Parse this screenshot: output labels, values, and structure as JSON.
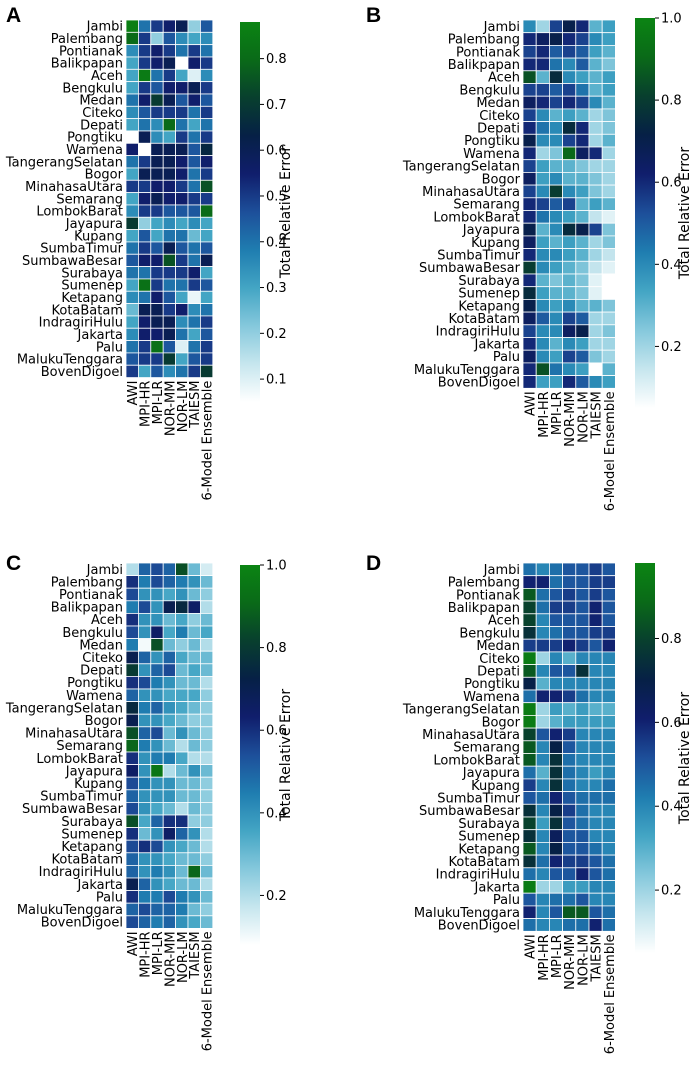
{
  "figure": {
    "colormap": [
      "#ffffff",
      "#c6e6ee",
      "#85c8dc",
      "#43a5c4",
      "#1f7db0",
      "#1d4f9a",
      "#101e6c",
      "#062046",
      "#083f2e",
      "#0a6a18",
      "#0b8413"
    ],
    "cell_border_color": "#ffffff"
  },
  "chart_data": [
    {
      "type": "heatmap",
      "panel": "A",
      "title": "",
      "colorbar_label": "Total Relative Error",
      "vmin": 0.05,
      "vmax": 0.88,
      "cbar_ticks": [
        0.1,
        0.2,
        0.3,
        0.4,
        0.5,
        0.6,
        0.7,
        0.8
      ],
      "cbar_tick_labels": [
        "0.1",
        "0.2",
        "0.3",
        "0.4",
        "0.5",
        "0.6",
        "0.7",
        "0.8"
      ],
      "x_labels": [
        "AWI",
        "MPI-HR",
        "MPI-LR",
        "NOR-MM",
        "NOR-LM",
        "TAIESM",
        "6-Model Ensemble"
      ],
      "y_labels": [
        "Jambi",
        "Palembang",
        "Pontianak",
        "Balikpapan",
        "Aceh",
        "Bengkulu",
        "Medan",
        "Citeko",
        "Depati",
        "Pongtiku",
        "Wamena",
        "TangerangSelatan",
        "Bogor",
        "MinahasaUtara",
        "Semarang",
        "LombokBarat",
        "Jayapura",
        "Kupang",
        "SumbaTimur",
        "SumbawaBesar",
        "Surabaya",
        "Sumenep",
        "Ketapang",
        "KotaBatam",
        "IndragiriHulu",
        "Jakarta",
        "Palu",
        "MalukuTenggara",
        "BovenDigoel"
      ],
      "values": [
        [
          0.86,
          0.4,
          0.5,
          0.55,
          0.6,
          0.2,
          0.45
        ],
        [
          0.8,
          0.5,
          0.2,
          0.45,
          0.35,
          0.3,
          0.35
        ],
        [
          0.35,
          0.5,
          0.55,
          0.5,
          0.4,
          0.5,
          0.4
        ],
        [
          0.3,
          0.5,
          0.55,
          0.6,
          0.05,
          0.55,
          0.5
        ],
        [
          0.3,
          0.85,
          0.4,
          0.5,
          0.3,
          0.1,
          0.35
        ],
        [
          0.3,
          0.5,
          0.45,
          0.55,
          0.55,
          0.6,
          0.5
        ],
        [
          0.4,
          0.55,
          0.7,
          0.6,
          0.45,
          0.55,
          0.45
        ],
        [
          0.35,
          0.45,
          0.5,
          0.5,
          0.5,
          0.4,
          0.5
        ],
        [
          0.3,
          0.4,
          0.35,
          0.8,
          0.4,
          0.3,
          0.4
        ],
        [
          0.05,
          0.6,
          0.35,
          0.3,
          0.5,
          0.4,
          0.5
        ],
        [
          0.55,
          0.05,
          0.6,
          0.6,
          0.6,
          0.45,
          0.65
        ],
        [
          0.4,
          0.5,
          0.6,
          0.6,
          0.55,
          0.45,
          0.55
        ],
        [
          0.3,
          0.6,
          0.6,
          0.6,
          0.55,
          0.4,
          0.5
        ],
        [
          0.5,
          0.5,
          0.55,
          0.55,
          0.5,
          0.4,
          0.75
        ],
        [
          0.3,
          0.55,
          0.6,
          0.55,
          0.55,
          0.5,
          0.5
        ],
        [
          0.35,
          0.5,
          0.5,
          0.45,
          0.45,
          0.45,
          0.8
        ],
        [
          0.7,
          0.2,
          0.3,
          0.35,
          0.3,
          0.35,
          0.3
        ],
        [
          0.3,
          0.45,
          0.3,
          0.4,
          0.4,
          0.25,
          0.3
        ],
        [
          0.4,
          0.5,
          0.45,
          0.6,
          0.45,
          0.4,
          0.45
        ],
        [
          0.45,
          0.55,
          0.55,
          0.75,
          0.5,
          0.4,
          0.6
        ],
        [
          0.4,
          0.4,
          0.5,
          0.5,
          0.5,
          0.55,
          0.3
        ],
        [
          0.3,
          0.82,
          0.5,
          0.4,
          0.4,
          0.5,
          0.45
        ],
        [
          0.35,
          0.4,
          0.55,
          0.45,
          0.3,
          0.08,
          0.3
        ],
        [
          0.25,
          0.6,
          0.6,
          0.5,
          0.55,
          0.35,
          0.4
        ],
        [
          0.3,
          0.55,
          0.6,
          0.6,
          0.35,
          0.4,
          0.5
        ],
        [
          0.35,
          0.55,
          0.55,
          0.6,
          0.4,
          0.3,
          0.45
        ],
        [
          0.4,
          0.5,
          0.82,
          0.45,
          0.1,
          0.4,
          0.5
        ],
        [
          0.45,
          0.5,
          0.5,
          0.7,
          0.3,
          0.45,
          0.5
        ],
        [
          0.5,
          0.3,
          0.45,
          0.35,
          0.4,
          0.5,
          0.7
        ]
      ]
    },
    {
      "type": "heatmap",
      "panel": "B",
      "title": "",
      "colorbar_label": "Total Relative Error",
      "vmin": 0.05,
      "vmax": 1.0,
      "cbar_ticks": [
        0.2,
        0.4,
        0.6,
        0.8,
        1.0
      ],
      "cbar_tick_labels": [
        "0.2",
        "0.4",
        "0.6",
        "0.8",
        "1.0"
      ],
      "x_labels": [
        "AWI",
        "MPI-HR",
        "MPI-LR",
        "NOR-MM",
        "NOR-LM",
        "TAIESM",
        "6-Model Ensemble"
      ],
      "y_labels": [
        "Jambi",
        "Palembang",
        "Pontianak",
        "Balikpapan",
        "Aceh",
        "Bengkulu",
        "Medan",
        "Citeko",
        "Depati",
        "Pongtiku",
        "Wamena",
        "TangerangSelatan",
        "Bogor",
        "MinahasaUtara",
        "Semarang",
        "LombokBarat",
        "Jayapura",
        "Kupang",
        "SumbaTimur",
        "SumbawaBesar",
        "Surabaya",
        "Sumenep",
        "Ketapang",
        "KotaBatam",
        "IndragiriHulu",
        "Jakarta",
        "Palu",
        "MalukuTenggara",
        "BovenDigoel"
      ],
      "values": [
        [
          0.4,
          0.2,
          0.55,
          0.7,
          0.6,
          0.3,
          0.35
        ],
        [
          0.6,
          0.65,
          0.7,
          0.6,
          0.55,
          0.4,
          0.35
        ],
        [
          0.55,
          0.6,
          0.5,
          0.55,
          0.5,
          0.35,
          0.3
        ],
        [
          0.6,
          0.6,
          0.45,
          0.4,
          0.5,
          0.3,
          0.25
        ],
        [
          0.85,
          0.3,
          0.75,
          0.4,
          0.35,
          0.3,
          0.35
        ],
        [
          0.55,
          0.55,
          0.5,
          0.55,
          0.45,
          0.3,
          0.35
        ],
        [
          0.65,
          0.6,
          0.55,
          0.6,
          0.55,
          0.4,
          0.3
        ],
        [
          0.55,
          0.4,
          0.3,
          0.35,
          0.3,
          0.2,
          0.25
        ],
        [
          0.6,
          0.45,
          0.4,
          0.75,
          0.6,
          0.2,
          0.25
        ],
        [
          0.7,
          0.4,
          0.4,
          0.55,
          0.6,
          0.2,
          0.3
        ],
        [
          0.6,
          0.2,
          0.25,
          0.9,
          0.65,
          0.6,
          0.2
        ],
        [
          0.55,
          0.35,
          0.3,
          0.3,
          0.25,
          0.2,
          0.2
        ],
        [
          0.65,
          0.35,
          0.4,
          0.3,
          0.3,
          0.25,
          0.2
        ],
        [
          0.55,
          0.4,
          0.8,
          0.4,
          0.35,
          0.25,
          0.2
        ],
        [
          0.6,
          0.55,
          0.5,
          0.55,
          0.3,
          0.35,
          0.3
        ],
        [
          0.6,
          0.45,
          0.4,
          0.35,
          0.3,
          0.15,
          0.1
        ],
        [
          0.7,
          0.3,
          0.4,
          0.75,
          0.7,
          0.55,
          0.25
        ],
        [
          0.65,
          0.35,
          0.3,
          0.35,
          0.3,
          0.2,
          0.25
        ],
        [
          0.6,
          0.4,
          0.4,
          0.35,
          0.3,
          0.2,
          0.15
        ],
        [
          0.8,
          0.4,
          0.35,
          0.3,
          0.25,
          0.15,
          0.1
        ],
        [
          0.6,
          0.3,
          0.25,
          0.3,
          0.25,
          0.1,
          0.05
        ],
        [
          0.75,
          0.35,
          0.3,
          0.3,
          0.25,
          0.1,
          0.05
        ],
        [
          0.7,
          0.4,
          0.35,
          0.4,
          0.3,
          0.3,
          0.25
        ],
        [
          0.65,
          0.5,
          0.4,
          0.55,
          0.5,
          0.2,
          0.2
        ],
        [
          0.55,
          0.4,
          0.4,
          0.65,
          0.7,
          0.2,
          0.25
        ],
        [
          0.6,
          0.4,
          0.3,
          0.4,
          0.35,
          0.2,
          0.2
        ],
        [
          0.65,
          0.4,
          0.35,
          0.55,
          0.5,
          0.25,
          0.2
        ],
        [
          0.6,
          0.85,
          0.45,
          0.4,
          0.35,
          0.05,
          0.3
        ],
        [
          0.6,
          0.35,
          0.35,
          0.6,
          0.5,
          0.4,
          0.35
        ]
      ]
    },
    {
      "type": "heatmap",
      "panel": "C",
      "title": "",
      "colorbar_label": "Total Relative Error",
      "vmin": 0.08,
      "vmax": 1.0,
      "cbar_ticks": [
        0.2,
        0.4,
        0.6,
        0.8,
        1.0
      ],
      "cbar_tick_labels": [
        "0.2",
        "0.4",
        "0.6",
        "0.8",
        "1.0"
      ],
      "x_labels": [
        "AWI",
        "MPI-HR",
        "MPI-LR",
        "NOR-MM",
        "NOR-LM",
        "TAIESM",
        "6-Model Ensemble"
      ],
      "y_labels": [
        "Jambi",
        "Palembang",
        "Pontianak",
        "Balikpapan",
        "Aceh",
        "Bengkulu",
        "Medan",
        "Citeko",
        "Depati",
        "Pongtiku",
        "Wamena",
        "TangerangSelatan",
        "Bogor",
        "MinahasaUtara",
        "Semarang",
        "LombokBarat",
        "Jayapura",
        "Kupang",
        "SumbaTimur",
        "SumbawaBesar",
        "Surabaya",
        "Sumenep",
        "Ketapang",
        "KotaBatam",
        "IndragiriHulu",
        "Jakarta",
        "Palu",
        "MalukuTenggara",
        "BovenDigoel"
      ],
      "values": [
        [
          0.2,
          0.5,
          0.55,
          0.5,
          0.85,
          0.3,
          0.15
        ],
        [
          0.6,
          0.45,
          0.55,
          0.5,
          0.45,
          0.4,
          0.3
        ],
        [
          0.55,
          0.4,
          0.4,
          0.35,
          0.4,
          0.3,
          0.25
        ],
        [
          0.45,
          0.55,
          0.4,
          0.7,
          0.75,
          0.65,
          0.2
        ],
        [
          0.6,
          0.4,
          0.4,
          0.3,
          0.35,
          0.25,
          0.3
        ],
        [
          0.55,
          0.4,
          0.65,
          0.35,
          0.45,
          0.3,
          0.35
        ],
        [
          0.45,
          0.1,
          0.85,
          0.3,
          0.25,
          0.3,
          0.2
        ],
        [
          0.7,
          0.5,
          0.4,
          0.5,
          0.35,
          0.3,
          0.3
        ],
        [
          0.8,
          0.4,
          0.5,
          0.55,
          0.3,
          0.35,
          0.3
        ],
        [
          0.6,
          0.55,
          0.45,
          0.4,
          0.3,
          0.3,
          0.2
        ],
        [
          0.5,
          0.4,
          0.4,
          0.35,
          0.35,
          0.35,
          0.25
        ],
        [
          0.75,
          0.45,
          0.5,
          0.4,
          0.35,
          0.3,
          0.25
        ],
        [
          0.7,
          0.4,
          0.4,
          0.35,
          0.3,
          0.25,
          0.25
        ],
        [
          0.85,
          0.5,
          0.55,
          0.3,
          0.4,
          0.3,
          0.25
        ],
        [
          0.9,
          0.45,
          0.4,
          0.3,
          0.2,
          0.3,
          0.25
        ],
        [
          0.6,
          0.4,
          0.45,
          0.45,
          0.35,
          0.2,
          0.2
        ],
        [
          0.65,
          0.4,
          0.95,
          0.2,
          0.3,
          0.4,
          0.3
        ],
        [
          0.55,
          0.45,
          0.4,
          0.4,
          0.3,
          0.3,
          0.25
        ],
        [
          0.5,
          0.4,
          0.4,
          0.4,
          0.3,
          0.3,
          0.25
        ],
        [
          0.55,
          0.4,
          0.35,
          0.3,
          0.2,
          0.3,
          0.25
        ],
        [
          0.85,
          0.35,
          0.5,
          0.6,
          0.6,
          0.25,
          0.25
        ],
        [
          0.6,
          0.3,
          0.4,
          0.65,
          0.5,
          0.4,
          0.2
        ],
        [
          0.55,
          0.6,
          0.55,
          0.4,
          0.35,
          0.3,
          0.2
        ],
        [
          0.5,
          0.4,
          0.4,
          0.35,
          0.3,
          0.3,
          0.25
        ],
        [
          0.5,
          0.4,
          0.45,
          0.4,
          0.3,
          0.9,
          0.3
        ],
        [
          0.7,
          0.5,
          0.4,
          0.35,
          0.3,
          0.3,
          0.2
        ],
        [
          0.6,
          0.45,
          0.45,
          0.55,
          0.45,
          0.4,
          0.3
        ],
        [
          0.5,
          0.55,
          0.5,
          0.5,
          0.45,
          0.3,
          0.25
        ],
        [
          0.55,
          0.5,
          0.45,
          0.5,
          0.4,
          0.35,
          0.3
        ]
      ]
    },
    {
      "type": "heatmap",
      "panel": "D",
      "title": "",
      "colorbar_label": "Total Relative Error",
      "vmin": 0.05,
      "vmax": 0.98,
      "cbar_ticks": [
        0.2,
        0.4,
        0.6,
        0.8
      ],
      "cbar_tick_labels": [
        "0.2",
        "0.4",
        "0.6",
        "0.8"
      ],
      "x_labels": [
        "AWI",
        "MPI-HR",
        "MPI-LR",
        "NOR-MM",
        "NOR-LM",
        "TAIESM",
        "6-Model Ensemble"
      ],
      "y_labels": [
        "Jambi",
        "Palembang",
        "Pontianak",
        "Balikpapan",
        "Aceh",
        "Bengkulu",
        "Medan",
        "Citeko",
        "Depati",
        "Pongtiku",
        "Wamena",
        "TangerangSelatan",
        "Bogor",
        "MinahasaUtara",
        "Semarang",
        "LombokBarat",
        "Jayapura",
        "Kupang",
        "SumbaTimur",
        "SumbawaBesar",
        "Surabaya",
        "Sumenep",
        "Ketapang",
        "KotaBatam",
        "IndragiriHulu",
        "Jakarta",
        "Palu",
        "MalukuTenggara",
        "BovenDigoel"
      ],
      "values": [
        [
          0.45,
          0.4,
          0.45,
          0.5,
          0.5,
          0.55,
          0.5
        ],
        [
          0.6,
          0.6,
          0.45,
          0.5,
          0.5,
          0.55,
          0.55
        ],
        [
          0.85,
          0.45,
          0.5,
          0.55,
          0.5,
          0.55,
          0.5
        ],
        [
          0.8,
          0.45,
          0.55,
          0.55,
          0.5,
          0.6,
          0.5
        ],
        [
          0.8,
          0.4,
          0.5,
          0.5,
          0.5,
          0.6,
          0.5
        ],
        [
          0.75,
          0.4,
          0.45,
          0.5,
          0.5,
          0.55,
          0.55
        ],
        [
          0.55,
          0.55,
          0.55,
          0.6,
          0.55,
          0.5,
          0.6
        ],
        [
          0.95,
          0.2,
          0.4,
          0.3,
          0.4,
          0.4,
          0.4
        ],
        [
          0.85,
          0.4,
          0.5,
          0.5,
          0.75,
          0.4,
          0.4
        ],
        [
          0.7,
          0.3,
          0.4,
          0.4,
          0.4,
          0.4,
          0.4
        ],
        [
          0.45,
          0.6,
          0.6,
          0.55,
          0.45,
          0.4,
          0.4
        ],
        [
          0.95,
          0.2,
          0.35,
          0.3,
          0.35,
          0.3,
          0.3
        ],
        [
          0.95,
          0.2,
          0.3,
          0.35,
          0.35,
          0.35,
          0.35
        ],
        [
          0.8,
          0.5,
          0.6,
          0.55,
          0.4,
          0.4,
          0.4
        ],
        [
          0.85,
          0.4,
          0.7,
          0.5,
          0.4,
          0.4,
          0.4
        ],
        [
          0.85,
          0.4,
          0.75,
          0.45,
          0.4,
          0.4,
          0.4
        ],
        [
          0.45,
          0.3,
          0.75,
          0.45,
          0.4,
          0.35,
          0.4
        ],
        [
          0.55,
          0.4,
          0.75,
          0.45,
          0.4,
          0.4,
          0.45
        ],
        [
          0.5,
          0.45,
          0.6,
          0.5,
          0.45,
          0.45,
          0.45
        ],
        [
          0.75,
          0.4,
          0.7,
          0.55,
          0.45,
          0.4,
          0.4
        ],
        [
          0.8,
          0.35,
          0.75,
          0.5,
          0.45,
          0.4,
          0.4
        ],
        [
          0.75,
          0.4,
          0.65,
          0.5,
          0.5,
          0.4,
          0.4
        ],
        [
          0.85,
          0.4,
          0.7,
          0.5,
          0.5,
          0.45,
          0.4
        ],
        [
          0.75,
          0.45,
          0.6,
          0.55,
          0.55,
          0.5,
          0.45
        ],
        [
          0.45,
          0.4,
          0.5,
          0.5,
          0.6,
          0.5,
          0.45
        ],
        [
          0.95,
          0.2,
          0.2,
          0.35,
          0.35,
          0.4,
          0.4
        ],
        [
          0.5,
          0.4,
          0.45,
          0.45,
          0.5,
          0.4,
          0.4
        ],
        [
          0.6,
          0.4,
          0.5,
          0.85,
          0.85,
          0.5,
          0.45
        ],
        [
          0.45,
          0.4,
          0.4,
          0.45,
          0.45,
          0.6,
          0.45
        ]
      ]
    }
  ]
}
